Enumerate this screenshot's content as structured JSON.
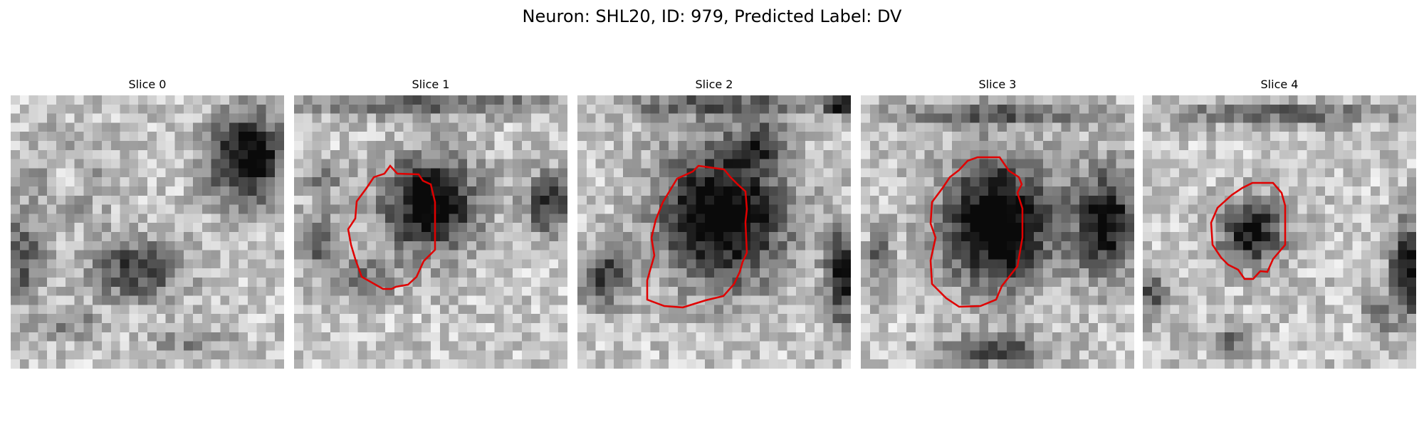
{
  "figure": {
    "title": "Neuron: SHL20, ID: 979, Predicted Label: DV"
  },
  "slices": [
    {
      "title": "Slice 0",
      "has_contour": false
    },
    {
      "title": "Slice 1",
      "has_contour": true
    },
    {
      "title": "Slice 2",
      "has_contour": true
    },
    {
      "title": "Slice 3",
      "has_contour": true
    },
    {
      "title": "Slice 4",
      "has_contour": true
    }
  ],
  "colors": {
    "contour": "#e00000",
    "background": "#ffffff"
  }
}
